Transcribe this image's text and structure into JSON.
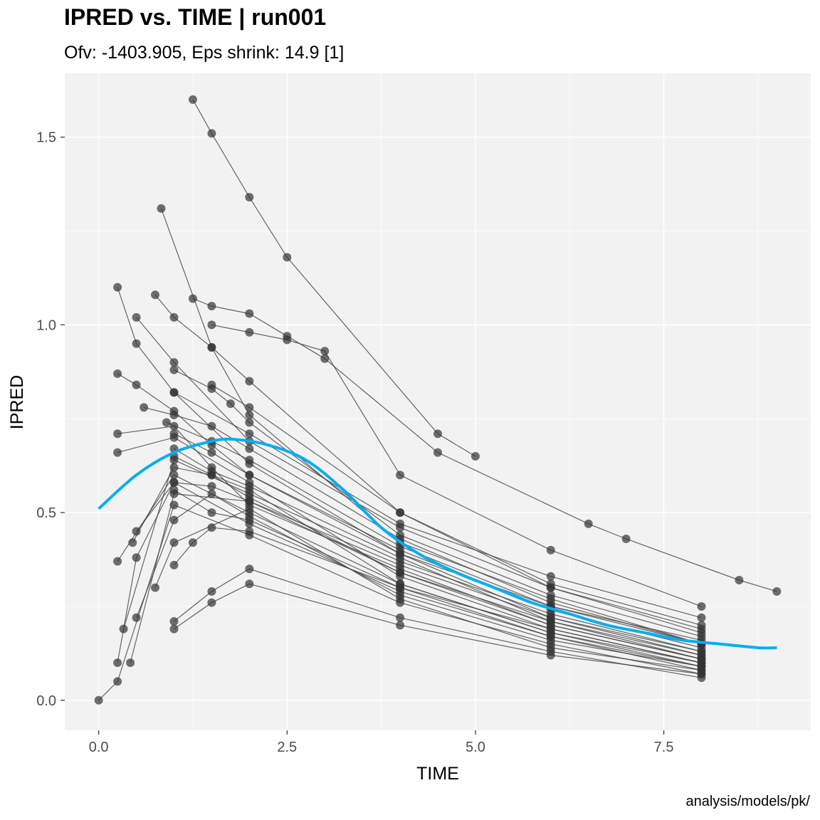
{
  "chart_data": {
    "type": "line",
    "title": "IPRED vs. TIME | run001",
    "subtitle": "Ofv: -1403.905, Eps shrink: 14.9 [1]",
    "caption": "analysis/models/pk/",
    "xlabel": "TIME",
    "ylabel": "IPRED",
    "xlim": [
      -0.45,
      9.45
    ],
    "ylim": [
      -0.08,
      1.67
    ],
    "xticks": [
      0.0,
      2.5,
      5.0,
      7.5
    ],
    "xtick_labels": [
      "0.0",
      "2.5",
      "5.0",
      "7.5"
    ],
    "yticks": [
      0.0,
      0.5,
      1.0,
      1.5
    ],
    "ytick_labels": [
      "0.0",
      "0.5",
      "1.0",
      "1.5"
    ],
    "grid": true,
    "colors": {
      "panel": "#f2f2f2",
      "gridline": "#ffffff",
      "subject_line": "#404040",
      "point": "#333333",
      "smooth": "#00aeef"
    },
    "series": [
      {
        "x": [
          1.25,
          1.5,
          2.0,
          2.5,
          4.5,
          5.0
        ],
        "y": [
          1.6,
          1.51,
          1.34,
          1.18,
          0.71,
          0.65
        ]
      },
      {
        "x": [
          0.83,
          1.5,
          2.0,
          4.0,
          6.0,
          8.0
        ],
        "y": [
          1.31,
          0.94,
          0.76,
          0.42,
          0.27,
          0.15
        ]
      },
      {
        "x": [
          0.25,
          0.5,
          1.0,
          2.0,
          4.0,
          6.0,
          8.0
        ],
        "y": [
          1.1,
          0.95,
          0.82,
          0.63,
          0.39,
          0.25,
          0.16
        ]
      },
      {
        "x": [
          0.75,
          1.0,
          1.5,
          2.0,
          4.0,
          6.0,
          8.0
        ],
        "y": [
          1.08,
          1.02,
          0.94,
          0.85,
          0.5,
          0.3,
          0.18
        ]
      },
      {
        "x": [
          1.25,
          1.5,
          2.0,
          2.5,
          3.0,
          4.5,
          6.5,
          7.0,
          8.5,
          9.0
        ],
        "y": [
          1.07,
          1.05,
          1.03,
          0.97,
          0.91,
          0.66,
          0.47,
          0.43,
          0.32,
          0.29
        ]
      },
      {
        "x": [
          0.5,
          1.0,
          2.0,
          4.0,
          6.0,
          8.0
        ],
        "y": [
          1.02,
          0.9,
          0.69,
          0.46,
          0.3,
          0.19
        ]
      },
      {
        "x": [
          0.25,
          0.5,
          1.0,
          1.5,
          2.0,
          4.0,
          6.0,
          8.0
        ],
        "y": [
          0.87,
          0.84,
          0.77,
          0.68,
          0.6,
          0.39,
          0.22,
          0.12
        ]
      },
      {
        "x": [
          0.25,
          1.0,
          1.5,
          2.0,
          4.0,
          6.0,
          8.0
        ],
        "y": [
          0.71,
          0.73,
          0.62,
          0.52,
          0.35,
          0.2,
          0.11
        ]
      },
      {
        "x": [
          0.25,
          1.0,
          2.0,
          4.0,
          6.0,
          8.0
        ],
        "y": [
          0.66,
          0.7,
          0.58,
          0.33,
          0.19,
          0.1
        ]
      },
      {
        "x": [
          0.25,
          1.0,
          2.0,
          4.0,
          6.0,
          8.0
        ],
        "y": [
          0.37,
          0.6,
          0.5,
          0.31,
          0.18,
          0.09
        ]
      },
      {
        "x": [
          0.25,
          0.5,
          1.0,
          2.0,
          4.0,
          6.0,
          8.0
        ],
        "y": [
          0.1,
          0.38,
          0.58,
          0.47,
          0.29,
          0.17,
          0.08
        ]
      },
      {
        "x": [
          0.0,
          0.25,
          1.0,
          2.0,
          4.0,
          6.0,
          8.0
        ],
        "y": [
          0.0,
          0.05,
          0.52,
          0.44,
          0.26,
          0.15,
          0.07
        ]
      },
      {
        "x": [
          0.33,
          1.0,
          2.0,
          4.0,
          6.0,
          8.0
        ],
        "y": [
          0.19,
          0.64,
          0.55,
          0.37,
          0.23,
          0.13
        ]
      },
      {
        "x": [
          0.42,
          1.0,
          2.0,
          4.0,
          6.0,
          8.0
        ],
        "y": [
          0.1,
          0.55,
          0.53,
          0.34,
          0.21,
          0.11
        ]
      },
      {
        "x": [
          0.5,
          1.0,
          1.5,
          2.0,
          4.0,
          6.0,
          8.0
        ],
        "y": [
          0.22,
          0.48,
          0.55,
          0.49,
          0.28,
          0.16,
          0.09
        ]
      },
      {
        "x": [
          0.75,
          1.0,
          2.0,
          4.0,
          6.0,
          8.0
        ],
        "y": [
          0.3,
          0.42,
          0.51,
          0.27,
          0.14,
          0.08
        ]
      },
      {
        "x": [
          1.0,
          1.5,
          2.0,
          4.0,
          6.0,
          8.0
        ],
        "y": [
          0.19,
          0.26,
          0.31,
          0.2,
          0.12,
          0.07
        ]
      },
      {
        "x": [
          1.0,
          1.5,
          2.0,
          4.0,
          6.0,
          8.0
        ],
        "y": [
          0.21,
          0.29,
          0.35,
          0.22,
          0.13,
          0.06
        ]
      },
      {
        "x": [
          1.0,
          1.25,
          1.5,
          2.0,
          4.0,
          6.0,
          8.0
        ],
        "y": [
          0.36,
          0.42,
          0.46,
          0.45,
          0.3,
          0.17,
          0.09
        ]
      },
      {
        "x": [
          1.5,
          2.0,
          2.5,
          3.0,
          4.0,
          6.0,
          8.0
        ],
        "y": [
          1.0,
          0.98,
          0.96,
          0.93,
          0.6,
          0.4,
          0.25
        ]
      },
      {
        "x": [
          1.0,
          1.5,
          1.75,
          2.0,
          4.0,
          6.0,
          8.0
        ],
        "y": [
          0.88,
          0.83,
          0.79,
          0.74,
          0.44,
          0.28,
          0.17
        ]
      },
      {
        "x": [
          0.6,
          1.0,
          1.5,
          2.0,
          4.0,
          6.0,
          8.0
        ],
        "y": [
          0.78,
          0.76,
          0.73,
          0.67,
          0.43,
          0.26,
          0.15
        ]
      },
      {
        "x": [
          1.0,
          1.5,
          2.0,
          4.0,
          6.0,
          8.0
        ],
        "y": [
          0.65,
          0.6,
          0.54,
          0.34,
          0.2,
          0.11
        ]
      },
      {
        "x": [
          1.0,
          1.5,
          2.0,
          4.0,
          6.0,
          8.0
        ],
        "y": [
          0.71,
          0.66,
          0.6,
          0.4,
          0.24,
          0.14
        ]
      },
      {
        "x": [
          1.0,
          1.5,
          2.0,
          4.0,
          6.0,
          8.0
        ],
        "y": [
          0.67,
          0.61,
          0.57,
          0.38,
          0.21,
          0.12
        ]
      },
      {
        "x": [
          0.5,
          1.0,
          1.5,
          2.0,
          4.0,
          6.0,
          8.0
        ],
        "y": [
          0.45,
          0.58,
          0.57,
          0.53,
          0.36,
          0.22,
          0.13
        ]
      },
      {
        "x": [
          0.45,
          1.0,
          1.5,
          2.0,
          4.0,
          6.0,
          8.0
        ],
        "y": [
          0.42,
          0.62,
          0.6,
          0.56,
          0.31,
          0.18,
          0.1
        ]
      },
      {
        "x": [
          1.0,
          1.5,
          2.0,
          4.0,
          6.0,
          8.0
        ],
        "y": [
          0.56,
          0.5,
          0.48,
          0.3,
          0.19,
          0.1
        ]
      },
      {
        "x": [
          1.0,
          2.0,
          4.0,
          6.0,
          8.0
        ],
        "y": [
          0.82,
          0.71,
          0.47,
          0.33,
          0.22
        ]
      },
      {
        "x": [
          1.5,
          2.0,
          4.0,
          6.0,
          8.0
        ],
        "y": [
          0.84,
          0.78,
          0.5,
          0.31,
          0.2
        ]
      },
      {
        "x": [
          0.9,
          1.5,
          2.0,
          4.0,
          6.0,
          8.0
        ],
        "y": [
          0.74,
          0.69,
          0.64,
          0.41,
          0.25,
          0.15
        ]
      }
    ],
    "smooth": {
      "x": [
        0.0,
        0.5,
        1.0,
        1.5,
        1.8,
        2.25,
        2.75,
        3.25,
        3.75,
        4.25,
        4.75,
        5.25,
        5.75,
        6.25,
        6.75,
        7.25,
        7.75,
        8.25,
        8.75,
        9.0
      ],
      "y": [
        0.51,
        0.6,
        0.66,
        0.69,
        0.695,
        0.68,
        0.64,
        0.56,
        0.46,
        0.39,
        0.34,
        0.3,
        0.26,
        0.23,
        0.2,
        0.18,
        0.16,
        0.15,
        0.14,
        0.14
      ]
    }
  }
}
